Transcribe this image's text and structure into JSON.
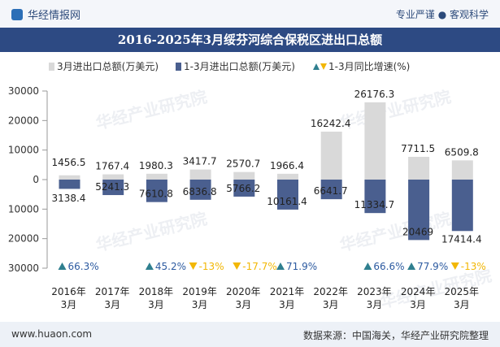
{
  "header": {
    "brand": "华经情报网",
    "tagline": "专业严谨 ● 客观科学"
  },
  "footer": {
    "website": "www.huaon.com",
    "source": "数据来源：中国海关，华经产业研究院整理"
  },
  "colors": {
    "title_bg": "#2d4a83",
    "monthly": "#d9d9d9",
    "cumulative": "#4a5f8f",
    "growth_up": "#2f7f8f",
    "growth_down": "#f2b705"
  },
  "chart_data": {
    "type": "bar",
    "title": "2016-2025年3月绥芬河综合保税区进出口总额",
    "categories": [
      "2016年\n3月",
      "2017年\n3月",
      "2018年\n3月",
      "2019年\n3月",
      "2020年\n3月",
      "2021年\n3月",
      "2022年\n3月",
      "2023年\n3月",
      "2024年\n3月",
      "2025年\n3月"
    ],
    "series": [
      {
        "name": "3月进出口总额(万美元)",
        "values": [
          1456.5,
          1767.4,
          1980.3,
          3417.7,
          2570.7,
          1966.4,
          16242.4,
          26176.3,
          7711.5,
          6509.8
        ]
      },
      {
        "name": "1-3月进出口总额(万美元)",
        "values": [
          3138.4,
          5241.3,
          7610.8,
          6836.8,
          5766.2,
          10161.4,
          6641.7,
          11334.7,
          20469,
          17414.4
        ]
      },
      {
        "name": "1-3月同比增速(%)",
        "values": [
          66.3,
          null,
          45.2,
          -13,
          -17.7,
          71.9,
          null,
          66.6,
          77.9,
          -13
        ]
      }
    ],
    "value_labels": {
      "monthly": [
        "1456.5",
        "1767.4",
        "1980.3",
        "3417.7",
        "2570.7",
        "1966.4",
        "16242.4",
        "26176.3",
        "7711.5",
        "6509.8"
      ],
      "cumulative": [
        "3138.4",
        "5241.3",
        "7610.8",
        "6836.8",
        "5766.2",
        "10161.4",
        "6641.7",
        "11334.7",
        "20469",
        "17414.4"
      ],
      "growth": [
        "66.3%",
        "",
        "45.2%",
        "-13%",
        "-17.7%",
        "71.9%",
        "",
        "66.6%",
        "77.9%",
        "-13%"
      ]
    },
    "y_ticks": [
      30000,
      20000,
      10000,
      0,
      10000,
      20000,
      30000
    ],
    "y_tick_values": [
      30000,
      20000,
      10000,
      0,
      -10000,
      -20000,
      -30000
    ],
    "ylim": [
      -30000,
      30000
    ],
    "legend_position": "top",
    "grid": false
  },
  "watermark": "华经产业研究院"
}
